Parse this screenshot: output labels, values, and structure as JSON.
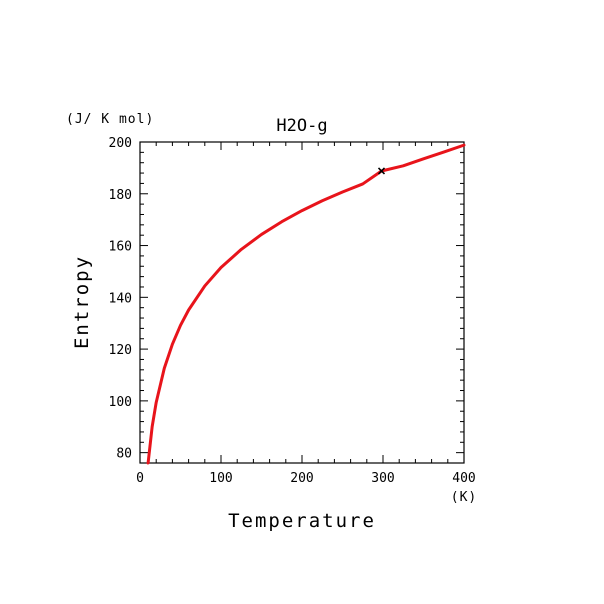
{
  "chart_data": {
    "type": "line",
    "title": "H2O-g",
    "xlabel": "Temperature",
    "ylabel": "Entropy",
    "x_unit": "(K)",
    "y_unit": "(J/ K mol)",
    "xlim": [
      0,
      400
    ],
    "ylim": [
      76,
      200
    ],
    "x_ticks": [
      0,
      100,
      200,
      300,
      400
    ],
    "y_ticks": [
      80,
      100,
      120,
      140,
      160,
      180,
      200
    ],
    "grid": false,
    "line_color": "#e8141b",
    "marker_color": "#000000",
    "series": [
      {
        "x": [
          10,
          15,
          20,
          30,
          40,
          50,
          60,
          80,
          100,
          125,
          150,
          175,
          200,
          225,
          250,
          275,
          298.15,
          325,
          350,
          375,
          400
        ],
        "values": [
          76.0,
          90.0,
          99.4,
          112.6,
          121.9,
          129.2,
          135.1,
          144.4,
          151.5,
          158.5,
          164.3,
          169.2,
          173.5,
          177.3,
          180.7,
          183.8,
          188.8,
          190.8,
          193.5,
          196.1,
          198.8
        ]
      }
    ],
    "marked_point": {
      "x": 298.15,
      "y": 188.8
    }
  }
}
